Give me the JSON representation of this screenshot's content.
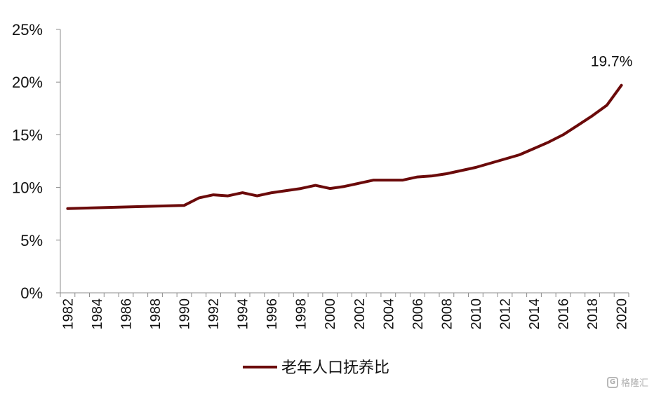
{
  "chart_data": {
    "type": "line",
    "title": "",
    "xlabel": "",
    "ylabel": "",
    "ylim": [
      0,
      25
    ],
    "yticks": [
      "0%",
      "5%",
      "10%",
      "15%",
      "20%",
      "25%"
    ],
    "ytick_values": [
      0,
      5,
      10,
      15,
      20,
      25
    ],
    "xticks": [
      "1982",
      "1984",
      "1986",
      "1988",
      "1990",
      "1992",
      "1994",
      "1996",
      "1998",
      "2000",
      "2002",
      "2004",
      "2006",
      "2008",
      "2010",
      "2012",
      "2014",
      "2016",
      "2018",
      "2020"
    ],
    "grid": false,
    "legend_position": "bottom-center",
    "series": [
      {
        "name": "老年人口抚养比",
        "color": "#6b0a0a",
        "x": [
          1982,
          1990,
          1991,
          1992,
          1993,
          1994,
          1995,
          1996,
          1997,
          1998,
          1999,
          2000,
          2001,
          2002,
          2003,
          2004,
          2005,
          2006,
          2007,
          2008,
          2009,
          2010,
          2011,
          2012,
          2013,
          2014,
          2015,
          2016,
          2017,
          2018,
          2019,
          2020
        ],
        "values": [
          8.0,
          8.3,
          9.0,
          9.3,
          9.2,
          9.5,
          9.2,
          9.5,
          9.7,
          9.9,
          10.2,
          9.9,
          10.1,
          10.4,
          10.7,
          10.7,
          10.7,
          11.0,
          11.1,
          11.3,
          11.6,
          11.9,
          12.3,
          12.7,
          13.1,
          13.7,
          14.3,
          15.0,
          15.9,
          16.8,
          17.8,
          19.7
        ]
      }
    ],
    "annotations": [
      {
        "text": "19.7%",
        "x": 2020,
        "y": 19.7
      }
    ]
  },
  "legend": {
    "label": "老年人口抚养比"
  },
  "watermark": {
    "text": "格隆汇"
  }
}
